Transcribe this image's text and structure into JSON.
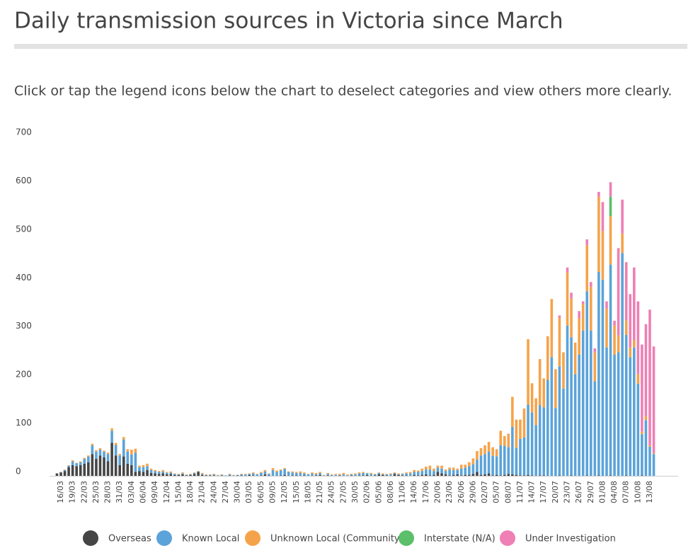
{
  "chart_data": {
    "type": "stacked_bar",
    "title": "Daily transmission sources in Victoria since March",
    "subtitle": "Click or tap the legend icons below the chart to deselect categories and view others more clearly.",
    "categories": [
      null,
      "16/03",
      null,
      null,
      "19/03",
      null,
      null,
      "22/03",
      null,
      null,
      "25/03",
      null,
      null,
      "28/03",
      null,
      null,
      "31/03",
      null,
      null,
      "03/04",
      null,
      null,
      "06/04",
      null,
      null,
      "09/04",
      null,
      null,
      "12/04",
      null,
      null,
      "15/04",
      null,
      null,
      "18/04",
      null,
      null,
      "21/04",
      null,
      null,
      "24/04",
      null,
      null,
      "27/04",
      null,
      null,
      "30/04",
      null,
      null,
      "03/05",
      null,
      null,
      "06/05",
      null,
      null,
      "09/05",
      null,
      null,
      "12/05",
      null,
      null,
      "15/05",
      null,
      null,
      "18/05",
      null,
      null,
      "21/05",
      null,
      null,
      "24/05",
      null,
      null,
      "27/05",
      null,
      null,
      "30/05",
      null,
      null,
      "02/06",
      null,
      null,
      "05/06",
      null,
      null,
      "08/06",
      null,
      null,
      "11/06",
      null,
      null,
      "14/06",
      null,
      null,
      "17/06",
      null,
      null,
      "20/06",
      null,
      null,
      "23/06",
      null,
      null,
      "26/06",
      null,
      null,
      "29/06",
      null,
      null,
      "02/07",
      null,
      null,
      "05/07",
      null,
      null,
      "08/07",
      null,
      null,
      "11/07",
      null,
      null,
      "14/07",
      null,
      null,
      "17/07",
      null,
      null,
      "20/07",
      null,
      null,
      "23/07",
      null,
      null,
      "26/07",
      null,
      null,
      "29/07",
      null,
      null,
      "01/08",
      null,
      null,
      "04/08",
      null,
      null,
      "07/08",
      null,
      null,
      "10/08",
      null,
      null,
      "13/08",
      null
    ],
    "series": [
      {
        "name": "Overseas",
        "color": "#454545",
        "values": [
          5,
          7,
          10,
          18,
          22,
          20,
          22,
          25,
          28,
          45,
          35,
          42,
          38,
          30,
          68,
          42,
          22,
          40,
          25,
          22,
          8,
          10,
          8,
          12,
          6,
          5,
          4,
          5,
          3,
          4,
          2,
          2,
          3,
          1,
          2,
          4,
          8,
          2,
          1,
          1,
          1,
          0,
          1,
          0,
          1,
          0,
          1,
          1,
          0,
          2,
          1,
          0,
          1,
          3,
          1,
          0,
          0,
          1,
          2,
          0,
          1,
          1,
          0,
          1,
          0,
          0,
          1,
          2,
          0,
          1,
          0,
          0,
          1,
          0,
          0,
          1,
          0,
          1,
          1,
          2,
          0,
          1,
          3,
          2,
          1,
          0,
          4,
          2,
          1,
          1,
          0,
          2,
          1,
          2,
          3,
          1,
          2,
          8,
          5,
          3,
          1,
          2,
          3,
          1,
          2,
          2,
          4,
          8,
          2,
          3,
          5,
          1,
          2,
          1,
          2,
          4,
          3,
          2,
          1,
          1,
          2,
          1,
          0,
          1,
          1,
          0,
          0,
          0,
          1,
          0,
          0,
          1,
          0,
          0,
          0,
          1,
          0,
          0,
          1,
          0,
          0,
          1,
          0,
          0,
          0,
          1,
          0,
          0,
          0,
          1,
          0,
          0,
          0
        ]
      },
      {
        "name": "Known Local",
        "color": "#5ba3d9",
        "values": [
          0,
          1,
          2,
          3,
          8,
          6,
          6,
          10,
          12,
          18,
          15,
          12,
          12,
          15,
          25,
          22,
          20,
          35,
          25,
          22,
          40,
          8,
          10,
          8,
          6,
          5,
          4,
          4,
          3,
          3,
          2,
          1,
          2,
          1,
          1,
          2,
          1,
          2,
          1,
          1,
          2,
          1,
          1,
          1,
          2,
          1,
          1,
          2,
          3,
          2,
          4,
          3,
          5,
          6,
          3,
          12,
          8,
          10,
          12,
          8,
          6,
          5,
          6,
          4,
          3,
          5,
          2,
          4,
          1,
          3,
          2,
          2,
          1,
          3,
          1,
          2,
          3,
          4,
          5,
          3,
          4,
          2,
          3,
          1,
          2,
          3,
          2,
          1,
          3,
          4,
          5,
          6,
          7,
          8,
          10,
          12,
          8,
          9,
          10,
          7,
          12,
          10,
          9,
          14,
          15,
          18,
          20,
          25,
          40,
          42,
          45,
          40,
          38,
          62,
          60,
          55,
          98,
          56,
          75,
          78,
          145,
          130,
          105,
          145,
          140,
          198,
          245,
          140,
          225,
          180,
          310,
          285,
          210,
          250,
          300,
          380,
          300,
          195,
          420,
          405,
          265,
          435,
          250,
          255,
          460,
          290,
          245,
          265,
          190,
          85,
          115,
          60,
          45
        ]
      },
      {
        "name": "Unknown Local (Community)",
        "color": "#f5a34a",
        "values": [
          0,
          0,
          1,
          1,
          2,
          1,
          2,
          2,
          2,
          3,
          3,
          3,
          2,
          3,
          5,
          4,
          3,
          5,
          5,
          10,
          8,
          3,
          4,
          5,
          3,
          2,
          2,
          3,
          2,
          2,
          1,
          1,
          2,
          1,
          1,
          1,
          1,
          2,
          1,
          1,
          1,
          1,
          1,
          0,
          1,
          1,
          0,
          1,
          1,
          1,
          2,
          1,
          2,
          3,
          1,
          4,
          3,
          2,
          2,
          1,
          2,
          2,
          3,
          2,
          1,
          2,
          3,
          2,
          1,
          2,
          1,
          2,
          2,
          3,
          2,
          1,
          2,
          2,
          2,
          1,
          2,
          1,
          1,
          2,
          1,
          2,
          1,
          2,
          1,
          2,
          3,
          4,
          3,
          5,
          6,
          8,
          5,
          4,
          6,
          3,
          4,
          5,
          3,
          8,
          6,
          8,
          12,
          18,
          15,
          18,
          20,
          18,
          15,
          30,
          20,
          28,
          62,
          58,
          40,
          60,
          135,
          60,
          55,
          95,
          60,
          90,
          120,
          80,
          100,
          75,
          110,
          80,
          65,
          75,
          55,
          95,
          90,
          60,
          155,
          100,
          80,
          100,
          60,
          35,
          40,
          30,
          20,
          15,
          20,
          5,
          8,
          3,
          2
        ]
      },
      {
        "name": "Interstate (N/A)",
        "color": "#5cbf6a",
        "values": [
          0,
          0,
          0,
          0,
          0,
          0,
          0,
          0,
          0,
          0,
          0,
          0,
          0,
          0,
          0,
          0,
          0,
          0,
          0,
          0,
          0,
          0,
          0,
          0,
          0,
          0,
          0,
          0,
          0,
          0,
          0,
          0,
          0,
          0,
          0,
          0,
          0,
          0,
          0,
          0,
          0,
          0,
          0,
          0,
          0,
          0,
          0,
          0,
          0,
          0,
          0,
          0,
          0,
          0,
          0,
          0,
          0,
          0,
          0,
          0,
          0,
          0,
          0,
          0,
          0,
          0,
          0,
          0,
          0,
          0,
          0,
          0,
          0,
          0,
          0,
          0,
          0,
          0,
          0,
          0,
          0,
          0,
          0,
          0,
          0,
          0,
          0,
          0,
          0,
          0,
          0,
          0,
          0,
          0,
          0,
          0,
          0,
          0,
          0,
          0,
          0,
          0,
          0,
          0,
          0,
          0,
          0,
          0,
          0,
          0,
          0,
          0,
          0,
          0,
          0,
          0,
          0,
          0,
          0,
          0,
          0,
          0,
          0,
          0,
          0,
          0,
          0,
          0,
          0,
          0,
          0,
          0,
          0,
          0,
          0,
          0,
          0,
          0,
          0,
          0,
          0,
          40,
          0,
          0,
          0,
          0,
          0,
          0,
          0,
          0,
          0,
          0,
          0
        ]
      },
      {
        "name": "Under Investigation",
        "color": "#ef7fb4",
        "values": [
          0,
          0,
          0,
          0,
          0,
          0,
          0,
          0,
          0,
          0,
          0,
          0,
          0,
          0,
          0,
          0,
          0,
          0,
          0,
          0,
          0,
          0,
          0,
          0,
          0,
          0,
          0,
          0,
          0,
          0,
          0,
          0,
          0,
          0,
          0,
          0,
          0,
          0,
          0,
          0,
          0,
          0,
          0,
          0,
          0,
          0,
          0,
          0,
          0,
          0,
          0,
          0,
          0,
          0,
          0,
          0,
          0,
          0,
          0,
          0,
          0,
          0,
          0,
          0,
          0,
          0,
          0,
          0,
          0,
          0,
          0,
          0,
          0,
          0,
          0,
          0,
          0,
          0,
          0,
          0,
          0,
          0,
          0,
          0,
          0,
          0,
          0,
          0,
          0,
          0,
          0,
          0,
          0,
          0,
          0,
          0,
          0,
          0,
          0,
          0,
          0,
          0,
          0,
          0,
          0,
          0,
          0,
          0,
          0,
          0,
          0,
          0,
          0,
          0,
          0,
          0,
          0,
          0,
          0,
          0,
          0,
          0,
          0,
          0,
          0,
          0,
          0,
          0,
          5,
          0,
          10,
          12,
          0,
          15,
          5,
          12,
          10,
          8,
          10,
          60,
          15,
          30,
          10,
          180,
          70,
          120,
          110,
          150,
          150,
          180,
          190,
          280,
          220
        ]
      }
    ],
    "ylim": [
      0,
      700
    ],
    "yticks": [
      0,
      100,
      200,
      300,
      400,
      500,
      600,
      700
    ],
    "grid": false
  }
}
